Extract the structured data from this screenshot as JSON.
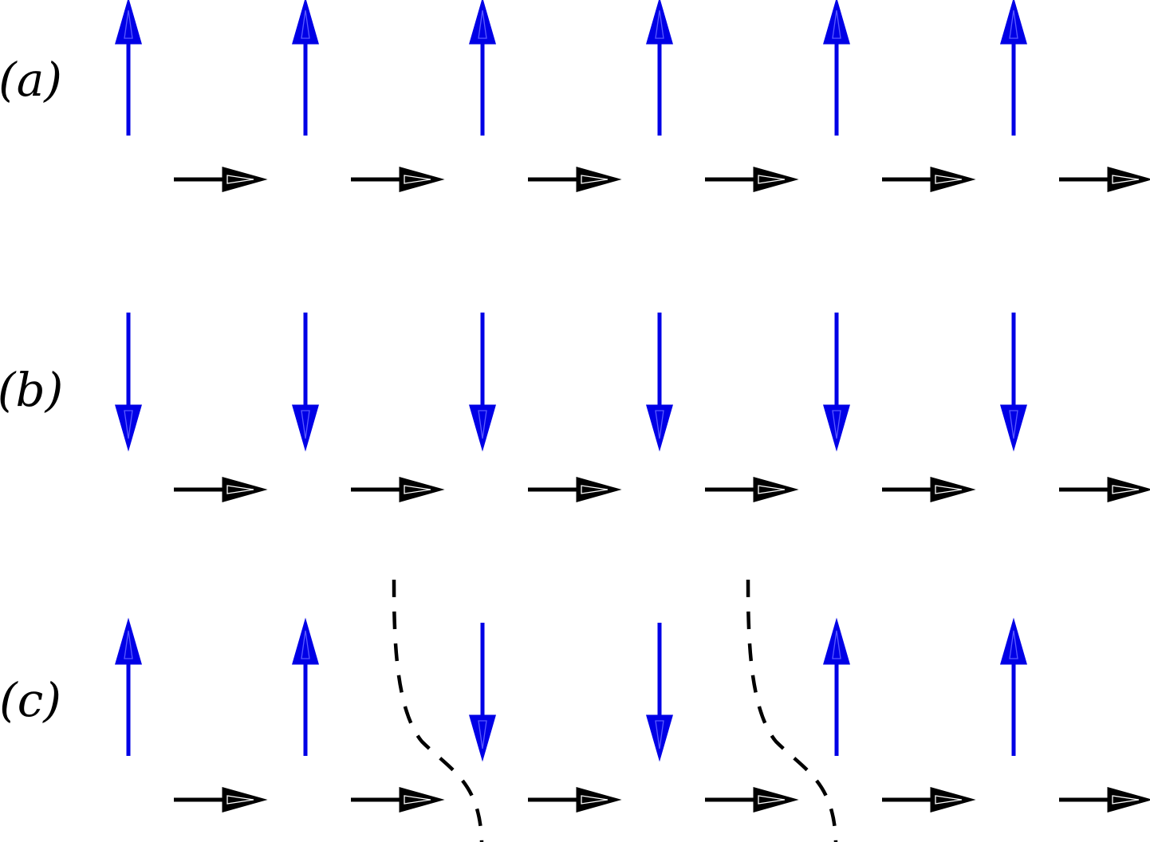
{
  "panels": [
    {
      "label": "(a)",
      "spin_pattern": [
        "up",
        "up",
        "up",
        "up",
        "up",
        "up"
      ],
      "domain_walls": []
    },
    {
      "label": "(b)",
      "spin_pattern": [
        "down",
        "down",
        "down",
        "down",
        "down",
        "down"
      ],
      "domain_walls": []
    },
    {
      "label": "(c)",
      "spin_pattern": [
        "up",
        "up",
        "down",
        "down",
        "up",
        "up"
      ],
      "domain_walls": [
        2,
        4
      ]
    }
  ],
  "horizontal_arrows_per_row": 6,
  "colors": {
    "spin": "#0000e6",
    "spin_inner": "#5a5aff",
    "moment": "#000000",
    "moment_inner": "#ffffff",
    "wall": "#000000"
  }
}
